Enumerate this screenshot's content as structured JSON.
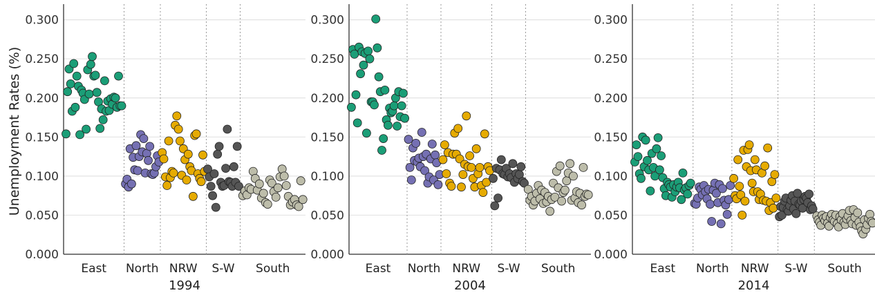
{
  "chart_data": {
    "type": "scatter",
    "ylabel": "Unemployment Rates (%)",
    "ylim": [
      0,
      0.32
    ],
    "yticks": [
      "0.000",
      "0.050",
      "0.100",
      "0.150",
      "0.200",
      "0.250",
      "0.300"
    ],
    "grid": "horizontal",
    "colors": {
      "East": "#1b9e77",
      "North": "#7570b3",
      "NRW": "#e6ab02",
      "S-W": "#555555",
      "South": "#bdbdaa"
    },
    "panels": [
      {
        "year": "1994",
        "groups": [
          {
            "region": "East",
            "range": [
              0.0,
              0.25
            ],
            "values": [
              0.154,
              0.208,
              0.237,
              0.218,
              0.183,
              0.244,
              0.188,
              0.228,
              0.215,
              0.153,
              0.21,
              0.206,
              0.198,
              0.16,
              0.236,
              0.205,
              0.243,
              0.253,
              0.228,
              0.229,
              0.207,
              0.195,
              0.161,
              0.186,
              0.172,
              0.222,
              0.183,
              0.196,
              0.184,
              0.199,
              0.192,
              0.201,
              0.2,
              0.188,
              0.228,
              0.19,
              0.19
            ]
          },
          {
            "region": "North",
            "range": [
              0.25,
              0.4
            ],
            "values": [
              0.09,
              0.096,
              0.086,
              0.135,
              0.09,
              0.124,
              0.108,
              0.139,
              0.107,
              0.125,
              0.153,
              0.131,
              0.148,
              0.104,
              0.129,
              0.12,
              0.138,
              0.103,
              0.102,
              0.104,
              0.112,
              0.126,
              0.118
            ]
          },
          {
            "region": "NRW",
            "range": [
              0.4,
              0.59
            ],
            "values": [
              0.13,
              0.122,
              0.099,
              0.088,
              0.145,
              0.098,
              0.106,
              0.104,
              0.165,
              0.177,
              0.16,
              0.145,
              0.101,
              0.135,
              0.121,
              0.095,
              0.128,
              0.112,
              0.107,
              0.074,
              0.152,
              0.154,
              0.103,
              0.097,
              0.093,
              0.127,
              0.106
            ]
          },
          {
            "region": "S-W",
            "range": [
              0.59,
              0.73
            ],
            "values": [
              0.109,
              0.099,
              0.087,
              0.075,
              0.103,
              0.06,
              0.128,
              0.138,
              0.092,
              0.087,
              0.088,
              0.11,
              0.16,
              0.093,
              0.092,
              0.087,
              0.112,
              0.092,
              0.138,
              0.087
            ]
          },
          {
            "region": "South",
            "range": [
              0.73,
              1.0
            ],
            "values": [
              0.075,
              0.081,
              0.076,
              0.085,
              0.083,
              0.106,
              0.097,
              0.082,
              0.09,
              0.072,
              0.078,
              0.066,
              0.064,
              0.095,
              0.091,
              0.08,
              0.073,
              0.085,
              0.099,
              0.109,
              0.1,
              0.088,
              0.074,
              0.063,
              0.067,
              0.07,
              0.063,
              0.061,
              0.094,
              0.07
            ]
          }
        ]
      },
      {
        "year": "2004",
        "groups": [
          {
            "region": "East",
            "range": [
              0.0,
              0.24
            ],
            "values": [
              0.188,
              0.262,
              0.256,
              0.204,
              0.168,
              0.265,
              0.231,
              0.259,
              0.242,
              0.257,
              0.155,
              0.26,
              0.25,
              0.195,
              0.195,
              0.191,
              0.301,
              0.264,
              0.227,
              0.208,
              0.133,
              0.148,
              0.21,
              0.172,
              0.165,
              0.187,
              0.181,
              0.183,
              0.19,
              0.2,
              0.164,
              0.208,
              0.176,
              0.19,
              0.206,
              0.174
            ]
          },
          {
            "region": "North",
            "range": [
              0.24,
              0.38
            ],
            "values": [
              0.147,
              0.111,
              0.095,
              0.136,
              0.12,
              0.142,
              0.118,
              0.123,
              0.112,
              0.156,
              0.125,
              0.107,
              0.128,
              0.091,
              0.099,
              0.122,
              0.141,
              0.095,
              0.127,
              0.117,
              0.089,
              0.102
            ]
          },
          {
            "region": "NRW",
            "range": [
              0.38,
              0.59
            ],
            "values": [
              0.121,
              0.14,
              0.103,
              0.13,
              0.091,
              0.087,
              0.128,
              0.155,
              0.128,
              0.161,
              0.122,
              0.086,
              0.102,
              0.115,
              0.177,
              0.112,
              0.126,
              0.111,
              0.097,
              0.086,
              0.135,
              0.103,
              0.111,
              0.088,
              0.079,
              0.154,
              0.092,
              0.112,
              0.107
            ]
          },
          {
            "region": "S-W",
            "range": [
              0.59,
              0.73
            ],
            "values": [
              0.097,
              0.062,
              0.11,
              0.072,
              0.108,
              0.121,
              0.103,
              0.102,
              0.11,
              0.099,
              0.103,
              0.098,
              0.116,
              0.092,
              0.103,
              0.097,
              0.102,
              0.112,
              0.093,
              0.091
            ]
          },
          {
            "region": "South",
            "range": [
              0.73,
              1.0
            ],
            "values": [
              0.083,
              0.069,
              0.074,
              0.063,
              0.068,
              0.078,
              0.088,
              0.071,
              0.082,
              0.065,
              0.079,
              0.067,
              0.074,
              0.055,
              0.07,
              0.091,
              0.073,
              0.106,
              0.085,
              0.113,
              0.068,
              0.079,
              0.082,
              0.094,
              0.104,
              0.116,
              0.069,
              0.1,
              0.072,
              0.08,
              0.066,
              0.078,
              0.063,
              0.111,
              0.074,
              0.077,
              0.076
            ]
          }
        ]
      },
      {
        "year": "2014",
        "groups": [
          {
            "region": "East",
            "range": [
              0.0,
              0.25
            ],
            "values": [
              0.118,
              0.14,
              0.125,
              0.103,
              0.097,
              0.15,
              0.112,
              0.146,
              0.12,
              0.108,
              0.081,
              0.129,
              0.111,
              0.1,
              0.135,
              0.149,
              0.108,
              0.126,
              0.098,
              0.084,
              0.075,
              0.092,
              0.089,
              0.086,
              0.073,
              0.089,
              0.08,
              0.086,
              0.092,
              0.085,
              0.07,
              0.104,
              0.082,
              0.085,
              0.077,
              0.088,
              0.091
            ]
          },
          {
            "region": "North",
            "range": [
              0.25,
              0.41
            ],
            "values": [
              0.065,
              0.064,
              0.072,
              0.086,
              0.083,
              0.076,
              0.088,
              0.08,
              0.071,
              0.083,
              0.064,
              0.042,
              0.082,
              0.091,
              0.078,
              0.066,
              0.089,
              0.039,
              0.084,
              0.069,
              0.063,
              0.051,
              0.07,
              0.088
            ]
          },
          {
            "region": "NRW",
            "range": [
              0.41,
              0.6
            ],
            "values": [
              0.097,
              0.075,
              0.071,
              0.121,
              0.087,
              0.076,
              0.05,
              0.133,
              0.068,
              0.112,
              0.134,
              0.14,
              0.107,
              0.091,
              0.08,
              0.121,
              0.108,
              0.08,
              0.07,
              0.077,
              0.104,
              0.069,
              0.113,
              0.068,
              0.136,
              0.056,
              0.066,
              0.093,
              0.059,
              0.102,
              0.072
            ]
          },
          {
            "region": "S-W",
            "range": [
              0.6,
              0.75
            ],
            "values": [
              0.048,
              0.061,
              0.05,
              0.06,
              0.068,
              0.072,
              0.057,
              0.055,
              0.062,
              0.069,
              0.075,
              0.058,
              0.068,
              0.052,
              0.078,
              0.064,
              0.063,
              0.068,
              0.059,
              0.07,
              0.074,
              0.072,
              0.066,
              0.077,
              0.057,
              0.062,
              0.058
            ]
          },
          {
            "region": "South",
            "range": [
              0.75,
              1.0
            ],
            "values": [
              0.049,
              0.044,
              0.041,
              0.037,
              0.05,
              0.046,
              0.043,
              0.048,
              0.04,
              0.036,
              0.047,
              0.051,
              0.044,
              0.042,
              0.05,
              0.039,
              0.035,
              0.048,
              0.044,
              0.052,
              0.041,
              0.038,
              0.045,
              0.049,
              0.056,
              0.043,
              0.039,
              0.057,
              0.047,
              0.037,
              0.053,
              0.041,
              0.035,
              0.03,
              0.026,
              0.044,
              0.032,
              0.038,
              0.046,
              0.051,
              0.042,
              0.04
            ]
          }
        ]
      }
    ]
  }
}
